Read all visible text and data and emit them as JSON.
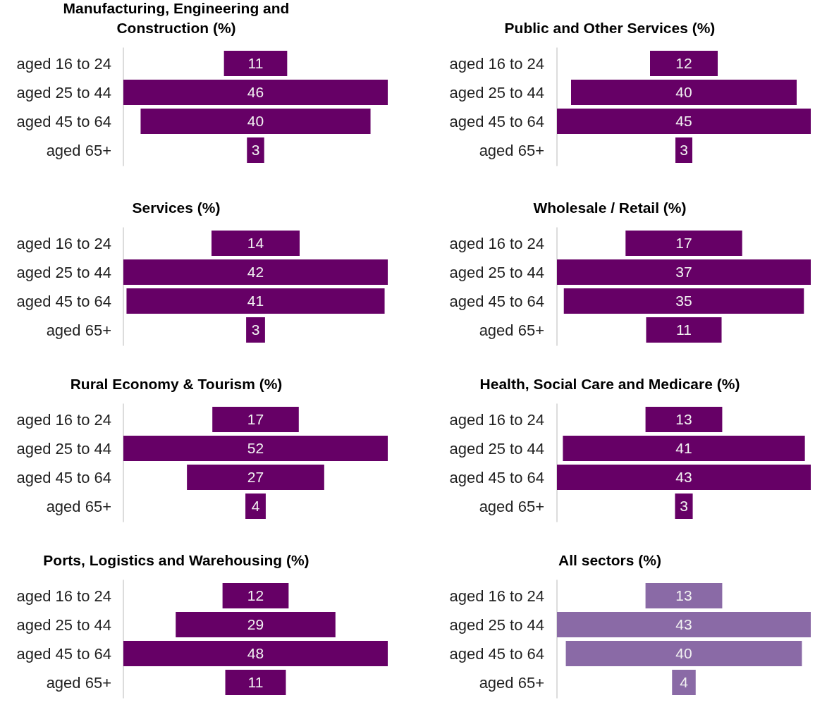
{
  "chart_data": [
    {
      "type": "other",
      "title": "Manufacturing, Engineering and Construction (%)",
      "categories": [
        "aged 16 to 24",
        "aged 25 to 44",
        "aged 45 to 64",
        "aged 65+"
      ],
      "values": [
        11,
        46,
        40,
        3
      ],
      "color": "#660066",
      "data_labels": true
    },
    {
      "type": "other",
      "title": "Public and Other Services (%)",
      "categories": [
        "aged 16 to 24",
        "aged 25 to 44",
        "aged 45 to 64",
        "aged 65+"
      ],
      "values": [
        12,
        40,
        45,
        3
      ],
      "color": "#660066",
      "data_labels": true
    },
    {
      "type": "other",
      "title": "Services (%)",
      "categories": [
        "aged 16 to 24",
        "aged 25 to 44",
        "aged 45 to 64",
        "aged 65+"
      ],
      "values": [
        14,
        42,
        41,
        3
      ],
      "color": "#660066",
      "data_labels": true
    },
    {
      "type": "other",
      "title": "Wholesale / Retail (%)",
      "categories": [
        "aged 16 to 24",
        "aged 25 to 44",
        "aged 45 to 64",
        "aged 65+"
      ],
      "values": [
        17,
        37,
        35,
        11
      ],
      "color": "#660066",
      "data_labels": true
    },
    {
      "type": "other",
      "title": "Rural Economy & Tourism (%)",
      "categories": [
        "aged 16 to 24",
        "aged 25 to 44",
        "aged 45 to 64",
        "aged 65+"
      ],
      "values": [
        17,
        52,
        27,
        4
      ],
      "color": "#660066",
      "data_labels": true
    },
    {
      "type": "other",
      "title": "Health, Social Care and Medicare (%)",
      "categories": [
        "aged 16 to 24",
        "aged 25 to 44",
        "aged 45 to 64",
        "aged 65+"
      ],
      "values": [
        13,
        41,
        43,
        3
      ],
      "color": "#660066",
      "data_labels": true
    },
    {
      "type": "other",
      "title": "Ports, Logistics and Warehousing (%)",
      "categories": [
        "aged 16 to 24",
        "aged 25 to 44",
        "aged 45 to 64",
        "aged 65+"
      ],
      "values": [
        12,
        29,
        48,
        11
      ],
      "color": "#660066",
      "data_labels": true
    },
    {
      "type": "other",
      "title": "All sectors (%)",
      "categories": [
        "aged 16 to 24",
        "aged 25 to 44",
        "aged 45 to 64",
        "aged 65+"
      ],
      "values": [
        13,
        43,
        40,
        4
      ],
      "color": "#8a6aa6",
      "data_labels": true
    }
  ]
}
